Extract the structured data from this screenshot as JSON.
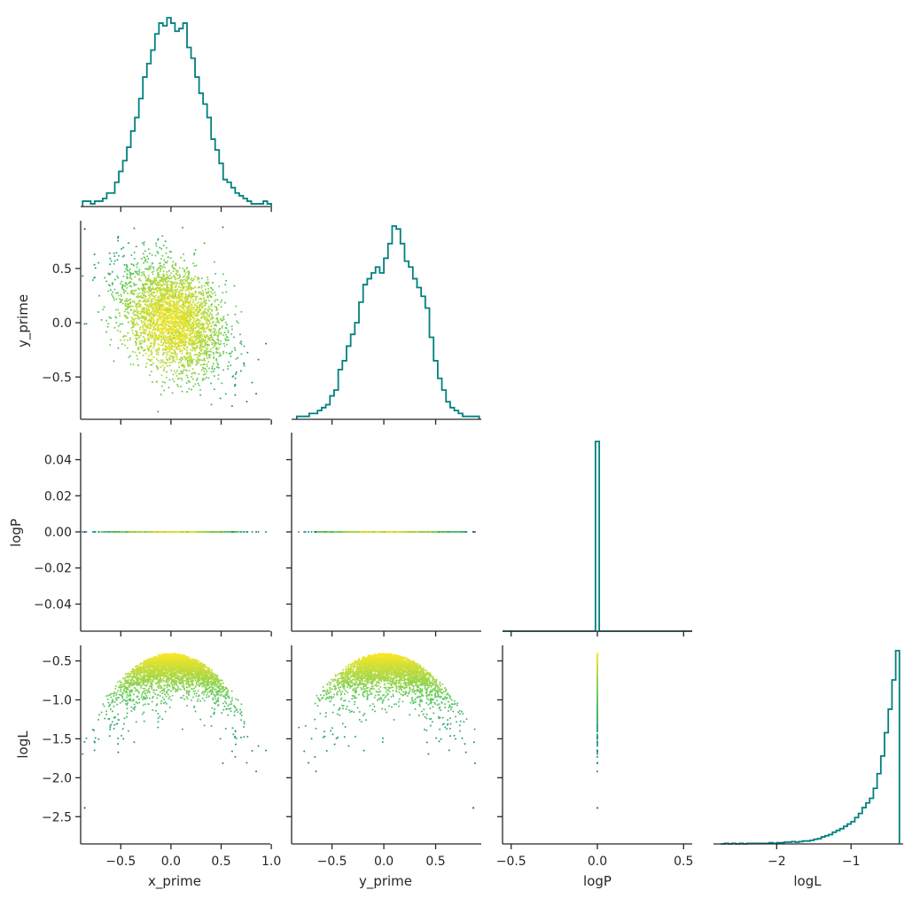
{
  "chart_data": {
    "type": "scatter",
    "kind": "corner-plot",
    "variables": [
      "x_prime",
      "y_prime",
      "logP",
      "logL"
    ],
    "ranges": {
      "x_prime": [
        -0.9,
        0.99
      ],
      "y_prime": [
        -0.89,
        0.94
      ],
      "logP": [
        -0.055,
        0.055
      ],
      "logL": [
        -2.85,
        -0.3
      ]
    },
    "ticks": {
      "x_prime": {
        "values": [
          -0.5,
          0.0,
          0.5,
          1.0
        ],
        "labels": [
          "−0.5",
          "0.0",
          "0.5",
          "1.0"
        ]
      },
      "y_prime": {
        "values": [
          -0.5,
          0.0,
          0.5
        ],
        "labels": [
          "−0.5",
          "0.0",
          "0.5"
        ]
      },
      "logP_x": {
        "values": [
          -0.5,
          0.0,
          0.5
        ],
        "labels": [
          "−0.5",
          "0.0",
          "0.5"
        ]
      },
      "logP_y": {
        "values": [
          0.04,
          0.02,
          0.0,
          -0.02,
          -0.04
        ],
        "labels": [
          "0.04",
          "0.02",
          "0.00",
          "−0.02",
          "−0.04"
        ]
      },
      "logL_x": {
        "values": [
          -2,
          -1
        ],
        "labels": [
          "−2",
          "−1"
        ]
      },
      "logL_y": {
        "values": [
          -0.5,
          -1.0,
          -1.5,
          -2.0,
          -2.5
        ],
        "labels": [
          "−0.5",
          "−1.0",
          "−1.5",
          "−2.0",
          "−2.5"
        ]
      }
    },
    "logP_hist_xrange": [
      -0.55,
      0.55
    ],
    "colormap": [
      "#440154",
      "#3b528b",
      "#21918c",
      "#5ec962",
      "#fde725"
    ],
    "hist_color": "#00807f",
    "scatter_color_by": "logL",
    "marginals": {
      "x_prime": {
        "bins": [
          -0.88,
          -0.84,
          -0.8,
          -0.76,
          -0.72,
          -0.68,
          -0.64,
          -0.6,
          -0.56,
          -0.52,
          -0.48,
          -0.44,
          -0.4,
          -0.36,
          -0.32,
          -0.28,
          -0.24,
          -0.2,
          -0.16,
          -0.12,
          -0.08,
          -0.04,
          0.0,
          0.04,
          0.08,
          0.12,
          0.16,
          0.2,
          0.24,
          0.28,
          0.32,
          0.36,
          0.4,
          0.44,
          0.48,
          0.52,
          0.56,
          0.6,
          0.64,
          0.68,
          0.72,
          0.76,
          0.8,
          0.84,
          0.88,
          0.92,
          0.96
        ],
        "counts": [
          2,
          2,
          1,
          2,
          2,
          3,
          5,
          5,
          9,
          13,
          17,
          22,
          28,
          33,
          40,
          48,
          53,
          58,
          64,
          68,
          67,
          70,
          68,
          65,
          66,
          68,
          59,
          55,
          48,
          42,
          38,
          33,
          25,
          21,
          16,
          10,
          9,
          7,
          5,
          4,
          3,
          2,
          1,
          1,
          1,
          2,
          1
        ]
      },
      "y_prime": {
        "bins": [
          -0.84,
          -0.8,
          -0.76,
          -0.72,
          -0.68,
          -0.64,
          -0.6,
          -0.56,
          -0.52,
          -0.48,
          -0.44,
          -0.4,
          -0.36,
          -0.32,
          -0.28,
          -0.24,
          -0.2,
          -0.16,
          -0.12,
          -0.08,
          -0.04,
          0.0,
          0.04,
          0.08,
          0.12,
          0.16,
          0.2,
          0.24,
          0.28,
          0.32,
          0.36,
          0.4,
          0.44,
          0.48,
          0.52,
          0.56,
          0.6,
          0.64,
          0.68,
          0.72,
          0.76,
          0.8,
          0.84,
          0.88
        ],
        "counts": [
          1,
          1,
          1,
          2,
          2,
          3,
          4,
          5,
          8,
          10,
          17,
          20,
          25,
          29,
          33,
          40,
          46,
          48,
          50,
          52,
          50,
          55,
          60,
          66,
          65,
          60,
          54,
          52,
          48,
          45,
          42,
          38,
          28,
          20,
          14,
          10,
          6,
          4,
          3,
          2,
          1,
          1,
          1,
          1
        ]
      },
      "logP": {
        "bins": [
          0.0
        ],
        "counts": [
          100
        ]
      },
      "logL": {
        "bins": [
          -2.75,
          -2.7,
          -2.65,
          -2.6,
          -2.55,
          -2.5,
          -2.45,
          -2.4,
          -2.35,
          -2.3,
          -2.25,
          -2.2,
          -2.15,
          -2.1,
          -2.05,
          -2.0,
          -1.95,
          -1.9,
          -1.85,
          -1.8,
          -1.75,
          -1.7,
          -1.65,
          -1.6,
          -1.55,
          -1.5,
          -1.45,
          -1.4,
          -1.35,
          -1.3,
          -1.25,
          -1.2,
          -1.15,
          -1.1,
          -1.05,
          -1.0,
          -0.95,
          -0.9,
          -0.85,
          -0.8,
          -0.75,
          -0.7,
          -0.65,
          -0.6,
          -0.55,
          -0.5,
          -0.45,
          -0.4
        ],
        "counts": [
          0,
          1,
          0,
          1,
          0,
          1,
          0,
          1,
          1,
          1,
          1,
          1,
          1,
          2,
          1,
          2,
          2,
          3,
          3,
          4,
          3,
          4,
          5,
          5,
          6,
          8,
          9,
          12,
          14,
          16,
          20,
          23,
          26,
          30,
          34,
          38,
          45,
          52,
          62,
          70,
          78,
          95,
          120,
          150,
          190,
          230,
          280,
          330
        ]
      }
    }
  }
}
